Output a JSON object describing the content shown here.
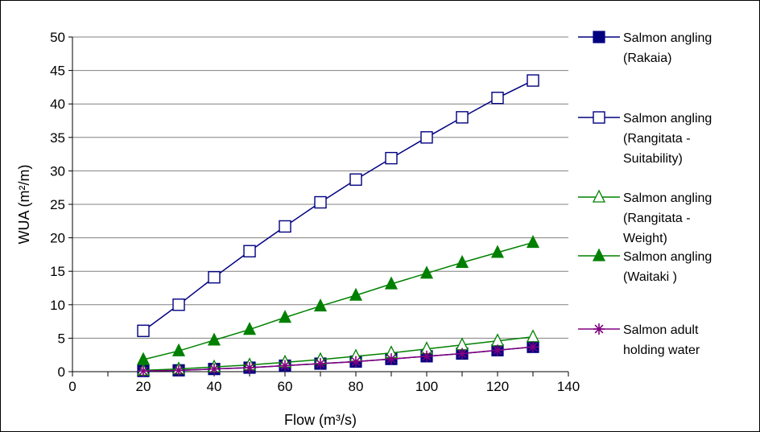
{
  "chart_data": {
    "type": "line",
    "title": "",
    "xlabel": "Flow (m³/s)",
    "ylabel": "WUA (m²/m)",
    "xlim": [
      0,
      140
    ],
    "ylim": [
      0,
      50
    ],
    "xticks": [
      "0",
      "20",
      "40",
      "60",
      "80",
      "100",
      "120",
      "140"
    ],
    "yticks": [
      "0",
      "5",
      "10",
      "15",
      "20",
      "25",
      "30",
      "35",
      "40",
      "45",
      "50"
    ],
    "grid": "horizontal",
    "legend_position": "right",
    "x": [
      20,
      30,
      40,
      50,
      60,
      70,
      80,
      90,
      100,
      110,
      120,
      130
    ],
    "series": [
      {
        "name": "Salmon angling (Rakaia)",
        "legend_lines": [
          "Salmon angling",
          "(Rakaia)"
        ],
        "marker": "square-filled",
        "color": "#000080",
        "values": [
          0.1,
          0.2,
          0.4,
          0.6,
          0.9,
          1.2,
          1.5,
          1.9,
          2.3,
          2.7,
          3.2,
          3.7
        ]
      },
      {
        "name": "Salmon angling (Rangitata - Suitability)",
        "legend_lines": [
          "Salmon angling",
          "(Rangitata -",
          "Suitability)"
        ],
        "marker": "square-open",
        "color": "#000080",
        "values": [
          6.1,
          10.0,
          14.1,
          18.0,
          21.7,
          25.3,
          28.7,
          31.9,
          35.0,
          38.0,
          40.9,
          43.5
        ]
      },
      {
        "name": "Salmon angling (Rangitata - Weight)",
        "legend_lines": [
          "Salmon angling",
          "(Rangitata -",
          "Weight)"
        ],
        "marker": "triangle-open",
        "color": "#008000",
        "values": [
          0.2,
          0.4,
          0.7,
          1.0,
          1.4,
          1.8,
          2.3,
          2.8,
          3.4,
          4.0,
          4.6,
          5.2
        ]
      },
      {
        "name": "Salmon angling (Waitaki )",
        "legend_lines": [
          "Salmon angling",
          "(Waitaki )"
        ],
        "marker": "triangle-filled",
        "color": "#008000",
        "values": [
          1.8,
          3.1,
          4.7,
          6.3,
          8.1,
          9.8,
          11.4,
          13.1,
          14.7,
          16.3,
          17.8,
          19.3
        ]
      },
      {
        "name": "Salmon adult holding water",
        "legend_lines": [
          "Salmon adult",
          "holding water"
        ],
        "marker": "asterisk",
        "color": "#800080",
        "values": [
          0.1,
          0.2,
          0.4,
          0.6,
          0.9,
          1.2,
          1.5,
          1.9,
          2.3,
          2.7,
          3.2,
          3.7
        ]
      }
    ]
  }
}
